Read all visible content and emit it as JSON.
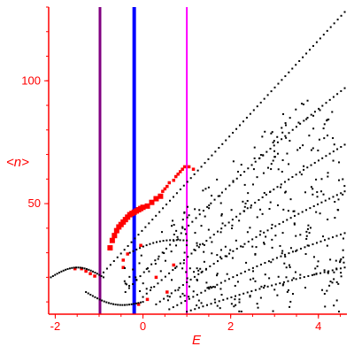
{
  "chart_data": {
    "type": "scatter",
    "xlabel": "E",
    "ylabel": "<n>",
    "xlim": [
      -2.15,
      4.65
    ],
    "ylim": [
      5,
      130
    ],
    "x_ticks": [
      -2,
      0,
      2,
      4
    ],
    "y_ticks": [
      50,
      100
    ],
    "x_tick_labels": [
      "-2",
      "0",
      "2",
      "4"
    ],
    "y_tick_labels": [
      "50",
      "100"
    ],
    "grid": false,
    "colors": {
      "axes": "#ff0000",
      "black_points": "#000000",
      "red_points": "#ff0000",
      "line_purple": "#800080",
      "line_blue": "#0000ff",
      "line_magenta": "#ff00ff"
    },
    "vertical_lines": [
      {
        "x": -0.98,
        "color": "#800080",
        "width": 3
      },
      {
        "x": -0.2,
        "color": "#0000ff",
        "width": 4
      },
      {
        "x": 1.0,
        "color": "#ff00ff",
        "width": 2
      }
    ],
    "series": [
      {
        "color": "#ff0000",
        "marker": "large-square",
        "points": [
          [
            -0.75,
            32
          ],
          [
            -0.7,
            35
          ],
          [
            -0.65,
            37
          ],
          [
            -0.6,
            39
          ],
          [
            -0.55,
            40.5
          ],
          [
            -0.5,
            41.5
          ],
          [
            -0.45,
            42.5
          ],
          [
            -0.4,
            43.5
          ],
          [
            -0.35,
            44.5
          ],
          [
            -0.3,
            45.5
          ],
          [
            -0.25,
            46
          ],
          [
            -0.2,
            46.5
          ],
          [
            -0.15,
            47
          ],
          [
            -0.1,
            47.5
          ],
          [
            -0.05,
            48
          ],
          [
            0.0,
            48.5
          ],
          [
            0.1,
            49
          ],
          [
            0.2,
            50.5
          ],
          [
            0.3,
            52
          ],
          [
            0.4,
            53
          ]
        ]
      },
      {
        "color": "#ff0000",
        "marker": "small-square",
        "points": [
          [
            0.45,
            55
          ],
          [
            0.5,
            56
          ],
          [
            0.55,
            57
          ],
          [
            0.6,
            58.5
          ],
          [
            0.7,
            59.5
          ],
          [
            0.75,
            61
          ],
          [
            0.8,
            62
          ],
          [
            0.85,
            63
          ],
          [
            0.9,
            64
          ],
          [
            0.95,
            65
          ],
          [
            1.05,
            65
          ],
          [
            1.15,
            64
          ],
          [
            -1.55,
            23.5
          ],
          [
            -1.4,
            23.5
          ],
          [
            -1.3,
            22.5
          ],
          [
            -1.2,
            21.5
          ],
          [
            -1.1,
            20.5
          ],
          [
            -0.45,
            24
          ],
          [
            -0.45,
            27
          ],
          [
            -0.35,
            29.5
          ],
          [
            -0.05,
            33
          ],
          [
            0.7,
            25
          ],
          [
            0.3,
            20
          ],
          [
            0.55,
            14
          ],
          [
            0.1,
            11
          ],
          [
            -0.1,
            9
          ]
        ]
      },
      {
        "color": "#000000",
        "marker": "dot",
        "curves": [
          {
            "from": [
              -2.1,
              20
            ],
            "to": [
              -0.9,
              20
            ],
            "bend": 4,
            "count": 26
          },
          {
            "from": [
              -1.3,
              14
            ],
            "to": [
              0.0,
              10
            ],
            "bend": -3,
            "count": 26
          },
          {
            "from": [
              -0.9,
              22
            ],
            "to": [
              4.6,
              128
            ],
            "bend": 0,
            "count": 70
          },
          {
            "from": [
              -0.4,
              14
            ],
            "to": [
              4.6,
              97
            ],
            "bend": 4,
            "count": 60
          },
          {
            "from": [
              0.0,
              12
            ],
            "to": [
              4.6,
              74
            ],
            "bend": 4,
            "count": 55
          },
          {
            "from": [
              -0.3,
              30
            ],
            "to": [
              1.0,
              35
            ],
            "bend": 2,
            "count": 18
          },
          {
            "from": [
              0.3,
              9
            ],
            "to": [
              4.6,
              55
            ],
            "bend": 3,
            "count": 50
          },
          {
            "from": [
              0.6,
              7
            ],
            "to": [
              4.6,
              38
            ],
            "bend": 2,
            "count": 45
          },
          {
            "from": [
              1.0,
              6
            ],
            "to": [
              4.6,
              24
            ],
            "bend": 1,
            "count": 40
          }
        ],
        "scatter_region": {
          "xmin": -0.6,
          "xmax": 4.6,
          "ymin": 6,
          "ymax": 92,
          "count": 360,
          "seed": 7
        }
      }
    ]
  }
}
